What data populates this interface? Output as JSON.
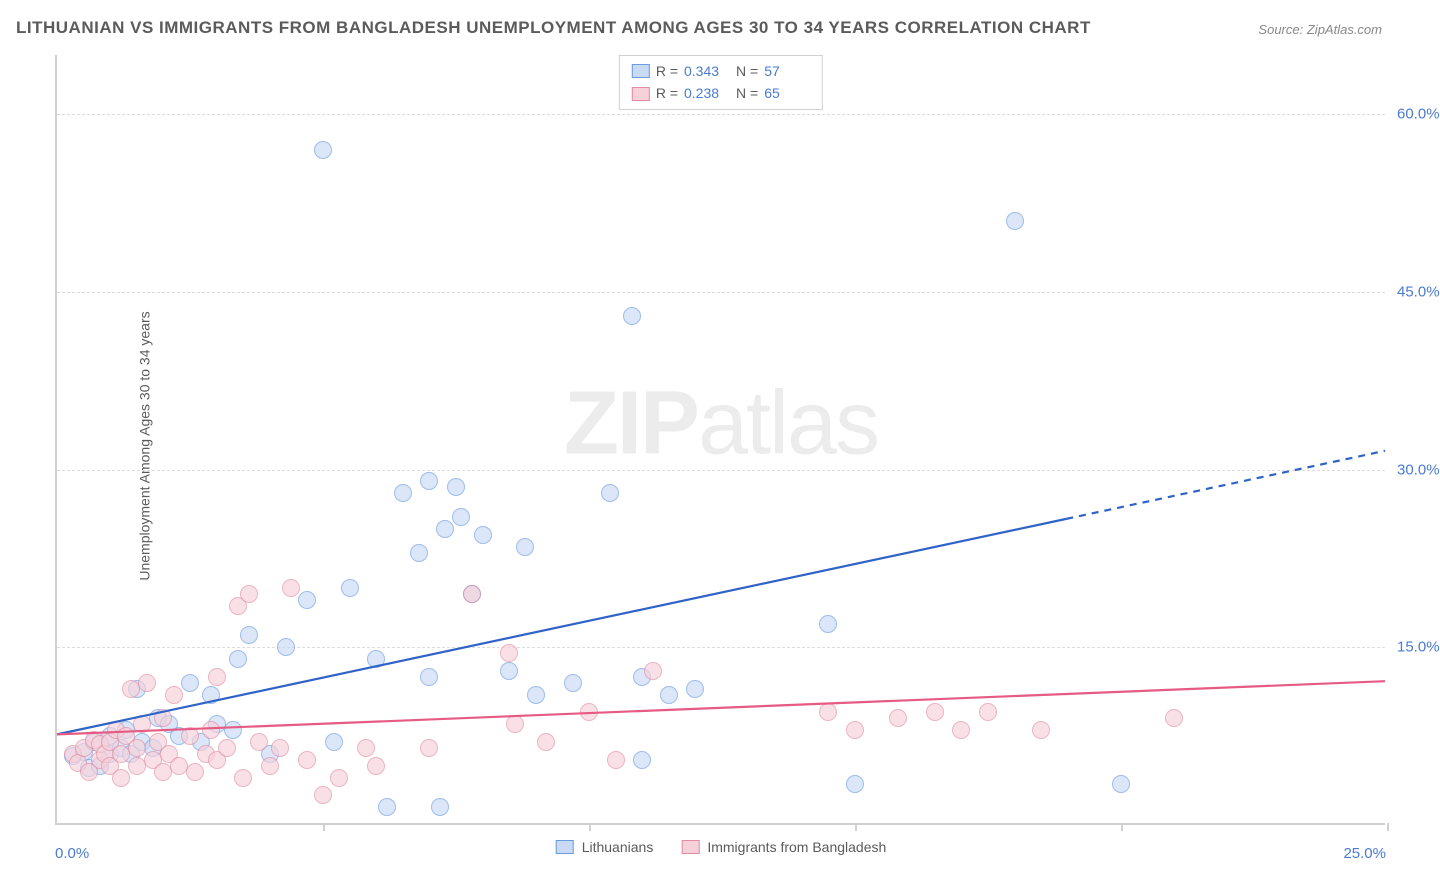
{
  "title": "LITHUANIAN VS IMMIGRANTS FROM BANGLADESH UNEMPLOYMENT AMONG AGES 30 TO 34 YEARS CORRELATION CHART",
  "source_label": "Source:",
  "source_value": "ZipAtlas.com",
  "y_axis_label": "Unemployment Among Ages 30 to 34 years",
  "watermark_a": "ZIP",
  "watermark_b": "atlas",
  "chart": {
    "type": "scatter",
    "background_color": "#ffffff",
    "grid_color": "#dcdcdc",
    "axis_color": "#d0d0d0",
    "tick_label_color": "#4a7bd0",
    "xlim": [
      0,
      25
    ],
    "ylim": [
      0,
      65
    ],
    "y_ticks": [
      15,
      30,
      45,
      60
    ],
    "y_tick_labels": [
      "15.0%",
      "30.0%",
      "45.0%",
      "60.0%"
    ],
    "x_ticks": [
      5,
      10,
      15,
      20,
      25
    ],
    "x_origin_label": "0.0%",
    "x_max_label": "25.0%",
    "marker_radius": 9,
    "marker_border_width": 1.5,
    "series": [
      {
        "name": "Lithuanians",
        "fill": "#c9daf5",
        "stroke": "#6a9ae0",
        "fill_opacity": 0.65,
        "R": "0.343",
        "N": "57",
        "trend": {
          "x1": 0,
          "y1": 7.5,
          "x2": 25,
          "y2": 31.5,
          "solid_until_x": 19,
          "color": "#2f63c8",
          "width": 2.2
        },
        "points": [
          [
            0.3,
            5.8
          ],
          [
            0.5,
            6.2
          ],
          [
            0.6,
            4.8
          ],
          [
            0.7,
            7.0
          ],
          [
            0.8,
            5.0
          ],
          [
            1.0,
            7.5
          ],
          [
            1.0,
            6.0
          ],
          [
            1.2,
            6.5
          ],
          [
            1.3,
            8.0
          ],
          [
            1.4,
            6.0
          ],
          [
            1.5,
            11.5
          ],
          [
            1.6,
            7.0
          ],
          [
            1.8,
            6.5
          ],
          [
            1.9,
            9.0
          ],
          [
            2.1,
            8.5
          ],
          [
            2.3,
            7.5
          ],
          [
            2.5,
            12.0
          ],
          [
            2.7,
            7.0
          ],
          [
            2.9,
            11.0
          ],
          [
            3.0,
            8.5
          ],
          [
            3.3,
            8.0
          ],
          [
            3.4,
            14.0
          ],
          [
            3.6,
            16.0
          ],
          [
            4.0,
            6.0
          ],
          [
            4.3,
            15.0
          ],
          [
            4.7,
            19.0
          ],
          [
            5.0,
            57.0
          ],
          [
            5.2,
            7.0
          ],
          [
            5.5,
            20.0
          ],
          [
            6.0,
            14.0
          ],
          [
            6.2,
            1.5
          ],
          [
            6.5,
            28.0
          ],
          [
            6.8,
            23.0
          ],
          [
            7.0,
            12.5
          ],
          [
            7.0,
            29.0
          ],
          [
            7.2,
            1.5
          ],
          [
            7.3,
            25.0
          ],
          [
            7.5,
            28.5
          ],
          [
            7.6,
            26.0
          ],
          [
            7.8,
            19.5
          ],
          [
            8.0,
            24.5
          ],
          [
            8.5,
            13.0
          ],
          [
            8.8,
            23.5
          ],
          [
            9.0,
            11.0
          ],
          [
            9.7,
            12.0
          ],
          [
            10.4,
            28.0
          ],
          [
            10.8,
            43.0
          ],
          [
            11.0,
            12.5
          ],
          [
            11.0,
            5.5
          ],
          [
            11.5,
            11.0
          ],
          [
            12.0,
            11.5
          ],
          [
            14.5,
            17.0
          ],
          [
            15.0,
            3.5
          ],
          [
            18.0,
            51.0
          ],
          [
            20.0,
            3.5
          ]
        ]
      },
      {
        "name": "Immigrants from Bangladesh",
        "fill": "#f7d1da",
        "stroke": "#e28ca2",
        "fill_opacity": 0.65,
        "R": "0.238",
        "N": "65",
        "trend": {
          "x1": 0,
          "y1": 7.5,
          "x2": 25,
          "y2": 12.0,
          "solid_until_x": 25,
          "color": "#e65a84",
          "width": 2.2
        },
        "points": [
          [
            0.3,
            6.0
          ],
          [
            0.4,
            5.2
          ],
          [
            0.5,
            6.5
          ],
          [
            0.6,
            4.5
          ],
          [
            0.7,
            7.2
          ],
          [
            0.8,
            5.5
          ],
          [
            0.8,
            6.8
          ],
          [
            0.9,
            6.0
          ],
          [
            1.0,
            7.0
          ],
          [
            1.0,
            5.0
          ],
          [
            1.1,
            8.0
          ],
          [
            1.2,
            6.0
          ],
          [
            1.2,
            4.0
          ],
          [
            1.3,
            7.5
          ],
          [
            1.4,
            11.5
          ],
          [
            1.5,
            6.5
          ],
          [
            1.5,
            5.0
          ],
          [
            1.6,
            8.5
          ],
          [
            1.7,
            12.0
          ],
          [
            1.8,
            5.5
          ],
          [
            1.9,
            7.0
          ],
          [
            2.0,
            4.5
          ],
          [
            2.0,
            9.0
          ],
          [
            2.1,
            6.0
          ],
          [
            2.2,
            11.0
          ],
          [
            2.3,
            5.0
          ],
          [
            2.5,
            7.5
          ],
          [
            2.6,
            4.5
          ],
          [
            2.8,
            6.0
          ],
          [
            2.9,
            8.0
          ],
          [
            3.0,
            5.5
          ],
          [
            3.0,
            12.5
          ],
          [
            3.2,
            6.5
          ],
          [
            3.4,
            18.5
          ],
          [
            3.5,
            4.0
          ],
          [
            3.6,
            19.5
          ],
          [
            3.8,
            7.0
          ],
          [
            4.0,
            5.0
          ],
          [
            4.2,
            6.5
          ],
          [
            4.4,
            20.0
          ],
          [
            4.7,
            5.5
          ],
          [
            5.0,
            2.5
          ],
          [
            5.3,
            4.0
          ],
          [
            5.8,
            6.5
          ],
          [
            6.0,
            5.0
          ],
          [
            7.0,
            6.5
          ],
          [
            7.8,
            19.5
          ],
          [
            8.5,
            14.5
          ],
          [
            8.6,
            8.5
          ],
          [
            9.2,
            7.0
          ],
          [
            10.0,
            9.5
          ],
          [
            10.5,
            5.5
          ],
          [
            11.2,
            13.0
          ],
          [
            14.5,
            9.5
          ],
          [
            15.0,
            8.0
          ],
          [
            15.8,
            9.0
          ],
          [
            16.5,
            9.5
          ],
          [
            17.0,
            8.0
          ],
          [
            17.5,
            9.5
          ],
          [
            18.5,
            8.0
          ],
          [
            21.0,
            9.0
          ]
        ]
      }
    ]
  },
  "legend_top": {
    "r_label": "R =",
    "n_label": "N ="
  },
  "legend_bottom": {
    "items": [
      "Lithuanians",
      "Immigrants from Bangladesh"
    ]
  }
}
